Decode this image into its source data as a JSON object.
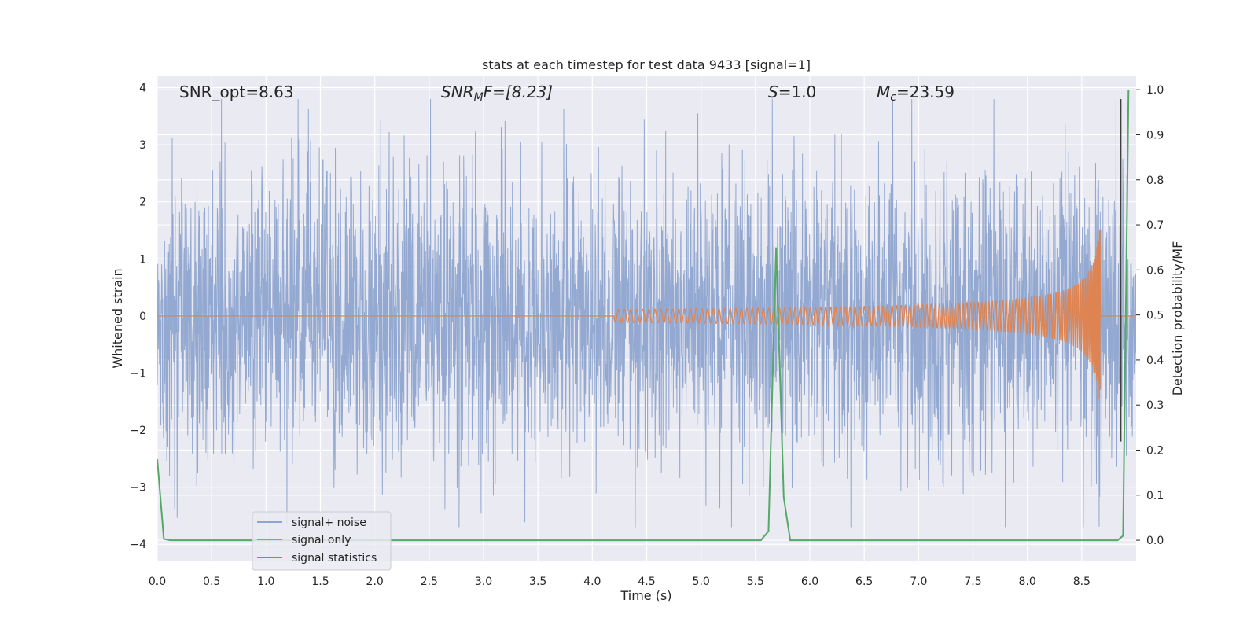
{
  "chart_data": {
    "type": "line",
    "title": "stats at each timestep for test data 9433 [signal=1]",
    "xlabel": "Time (s)",
    "ylabel": "Whitened strain",
    "ylabel_right": "Detection probability/MF",
    "xlim": [
      0.0,
      9.0
    ],
    "ylim": [
      -4.3,
      4.2
    ],
    "ylim_right": [
      -0.047,
      1.03
    ],
    "x_ticks": [
      "0.0",
      "0.5",
      "1.0",
      "1.5",
      "2.0",
      "2.5",
      "3.0",
      "3.5",
      "4.0",
      "4.5",
      "5.0",
      "5.5",
      "6.0",
      "6.5",
      "7.0",
      "7.5",
      "8.0",
      "8.5"
    ],
    "y_ticks": [
      "4",
      "3",
      "2",
      "1",
      "0",
      "−1",
      "−2",
      "−3",
      "−4"
    ],
    "y_ticks_right": [
      "1.0",
      "0.9",
      "0.8",
      "0.7",
      "0.6",
      "0.5",
      "0.4",
      "0.3",
      "0.2",
      "0.1",
      "0.0"
    ],
    "annotations": [
      {
        "id": "snr-opt",
        "text": "SNR_opt=8.63"
      },
      {
        "id": "snr-mf",
        "text": "SNRMF=[8.23]",
        "base": "SNR",
        "sub": "M",
        "rest": "F=[8.23]"
      },
      {
        "id": "s-stat",
        "text": "S=1.0",
        "base": "S",
        "rest": "=1.0"
      },
      {
        "id": "mc",
        "text": "Mc=23.59",
        "base": "M",
        "sub": "c",
        "rest": "=23.59"
      }
    ],
    "legend_position": "lower-left",
    "grid": true,
    "series": [
      {
        "name": "signal+ noise",
        "color": "#8fa5cf",
        "kind": "noisy-strain",
        "amplitude_envelope": [
          -3.7,
          3.8
        ]
      },
      {
        "name": "signal only",
        "color": "#dd8452",
        "kind": "chirp",
        "merger_time": 8.67,
        "peak_amplitude": 1.8
      },
      {
        "name": "signal statistics",
        "color": "#55a868",
        "axis": "right",
        "x": [
          0.0,
          0.06,
          0.12,
          0.5,
          1.0,
          2.0,
          3.0,
          4.0,
          5.0,
          5.55,
          5.62,
          5.69,
          5.76,
          5.82,
          6.5,
          7.5,
          8.5,
          8.83,
          8.88,
          8.93
        ],
        "values": [
          0.18,
          0.003,
          0.0,
          0.0,
          0.0,
          0.0,
          0.0,
          0.0,
          0.0,
          0.0,
          0.02,
          0.65,
          0.095,
          0.0,
          0.0,
          0.0,
          0.0,
          0.0,
          0.01,
          1.0
        ]
      }
    ],
    "colors": {
      "background": "#eaeaf2",
      "grid": "#ffffff",
      "marker_line": "#404040"
    }
  }
}
